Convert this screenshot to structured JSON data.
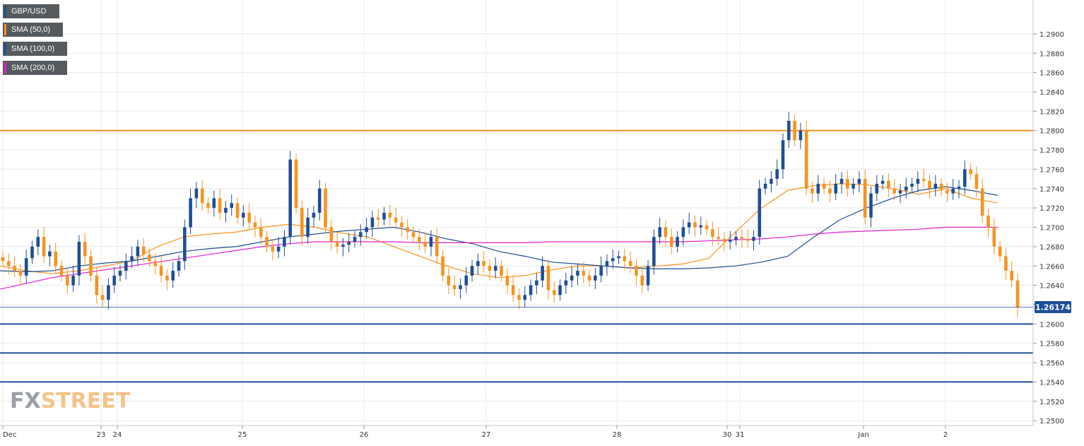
{
  "watermark": {
    "part1": "FX",
    "part2": "STREET"
  },
  "legend": [
    {
      "label": "GBP/USD",
      "color": "#1f4e96"
    },
    {
      "label": "SMA (50,0)",
      "color": "#f7931e"
    },
    {
      "label": "SMA (100,0)",
      "color": "#1f4e96"
    },
    {
      "label": "SMA (200,0)",
      "color": "#e020d0"
    }
  ],
  "chart_data": {
    "type": "line",
    "title": "",
    "xlabel": "",
    "ylabel": "",
    "grid": true,
    "legend_position": "top-left",
    "ylim": [
      1.2495,
      1.2935
    ],
    "y_ticks": [
      "1.2500",
      "1.2520",
      "1.2540",
      "1.2560",
      "1.2580",
      "1.2600",
      "1.2620",
      "1.2640",
      "1.2660",
      "1.2680",
      "1.2700",
      "1.2720",
      "1.2740",
      "1.2760",
      "1.2780",
      "1.2800",
      "1.2820",
      "1.2840",
      "1.2860",
      "1.2880",
      "1.2900"
    ],
    "x_ticks": [
      "Dec",
      "23",
      "24",
      "25",
      "26",
      "27",
      "28",
      "30",
      "31",
      "Jan",
      "2"
    ],
    "current_price": "1.26174",
    "colors": {
      "up": "#1f4e96",
      "down": "#f7931e",
      "resistance": "#f7931e",
      "support": "#1f4e96"
    },
    "resistance_levels": [
      1.28
    ],
    "support_levels": [
      1.26,
      1.257,
      1.254
    ],
    "series": [
      {
        "name": "GBP/USD",
        "values": [
          1.2665,
          1.266,
          1.2655,
          1.265,
          1.2668,
          1.268,
          1.269,
          1.267,
          1.2675,
          1.266,
          1.265,
          1.264,
          1.265,
          1.2685,
          1.267,
          1.265,
          1.263,
          1.2625,
          1.264,
          1.265,
          1.2655,
          1.2665,
          1.267,
          1.268,
          1.2672,
          1.2665,
          1.266,
          1.265,
          1.2645,
          1.2655,
          1.2665,
          1.27,
          1.273,
          1.274,
          1.2725,
          1.272,
          1.273,
          1.2715,
          1.272,
          1.2725,
          1.271,
          1.2715,
          1.2705,
          1.27,
          1.269,
          1.268,
          1.2675,
          1.268,
          1.269,
          1.277,
          1.272,
          1.269,
          1.271,
          1.2715,
          1.274,
          1.27,
          1.2685,
          1.268,
          1.2682,
          1.2685,
          1.269,
          1.2695,
          1.27,
          1.271,
          1.2708,
          1.2715,
          1.271,
          1.2705,
          1.27,
          1.2695,
          1.269,
          1.2685,
          1.268,
          1.269,
          1.267,
          1.265,
          1.264,
          1.2636,
          1.264,
          1.265,
          1.266,
          1.2665,
          1.266,
          1.2655,
          1.266,
          1.265,
          1.264,
          1.263,
          1.2625,
          1.263,
          1.264,
          1.2645,
          1.266,
          1.2635,
          1.263,
          1.264,
          1.2645,
          1.265,
          1.2655,
          1.265,
          1.2645,
          1.265,
          1.266,
          1.2665,
          1.2668,
          1.267,
          1.2665,
          1.266,
          1.265,
          1.264,
          1.266,
          1.269,
          1.27,
          1.269,
          1.268,
          1.269,
          1.27,
          1.2705,
          1.27,
          1.2702,
          1.2698,
          1.269,
          1.2688,
          1.2685,
          1.2687,
          1.269,
          1.2688,
          1.2686,
          1.269,
          1.274,
          1.2745,
          1.275,
          1.276,
          1.279,
          1.281,
          1.279,
          1.28,
          1.274,
          1.2735,
          1.2745,
          1.274,
          1.2735,
          1.2745,
          1.275,
          1.274,
          1.2745,
          1.275,
          1.271,
          1.2735,
          1.2745,
          1.2748,
          1.274,
          1.2735,
          1.2738,
          1.2742,
          1.2745,
          1.275,
          1.2748,
          1.274,
          1.2745,
          1.2738,
          1.2735,
          1.274,
          1.2742,
          1.276,
          1.2755,
          1.274,
          1.2712,
          1.27,
          1.268,
          1.267,
          1.2655,
          1.2645,
          1.2617
        ]
      },
      {
        "name": "SMA (50,0)",
        "values": [
          1.266,
          1.2655,
          1.2652,
          1.2655,
          1.266,
          1.2665,
          1.268,
          1.269,
          1.2693,
          1.2695,
          1.27,
          1.2703,
          1.27,
          1.2694,
          1.269,
          1.268,
          1.267,
          1.266,
          1.2652,
          1.2648,
          1.265,
          1.2656,
          1.266,
          1.266,
          1.2658,
          1.266,
          1.2662,
          1.2668,
          1.2695,
          1.272,
          1.2738,
          1.2743,
          1.2745,
          1.2744,
          1.274,
          1.2734,
          1.274,
          1.273,
          1.2725
        ]
      },
      {
        "name": "SMA (100,0)",
        "values": [
          1.2655,
          1.2654,
          1.2655,
          1.266,
          1.2663,
          1.2665,
          1.267,
          1.2675,
          1.2678,
          1.268,
          1.2685,
          1.269,
          1.2693,
          1.2696,
          1.2698,
          1.27,
          1.2695,
          1.2688,
          1.2683,
          1.2675,
          1.267,
          1.2664,
          1.2662,
          1.266,
          1.2658,
          1.2657,
          1.2657,
          1.2658,
          1.266,
          1.2664,
          1.267,
          1.269,
          1.2708,
          1.272,
          1.273,
          1.2738,
          1.2742,
          1.2738,
          1.2733
        ]
      },
      {
        "name": "SMA (200,0)",
        "values": [
          1.2636,
          1.2642,
          1.2648,
          1.2652,
          1.2656,
          1.266,
          1.2664,
          1.2668,
          1.2672,
          1.2676,
          1.268,
          1.2683,
          1.2685,
          1.2685,
          1.2685,
          1.2685,
          1.2684,
          1.2684,
          1.2684,
          1.2684,
          1.2684,
          1.2685,
          1.2685,
          1.2685,
          1.2685,
          1.2685,
          1.2685,
          1.2686,
          1.2687,
          1.2688,
          1.269,
          1.2693,
          1.2695,
          1.2696,
          1.2697,
          1.2698,
          1.27,
          1.27,
          1.27
        ]
      }
    ]
  }
}
